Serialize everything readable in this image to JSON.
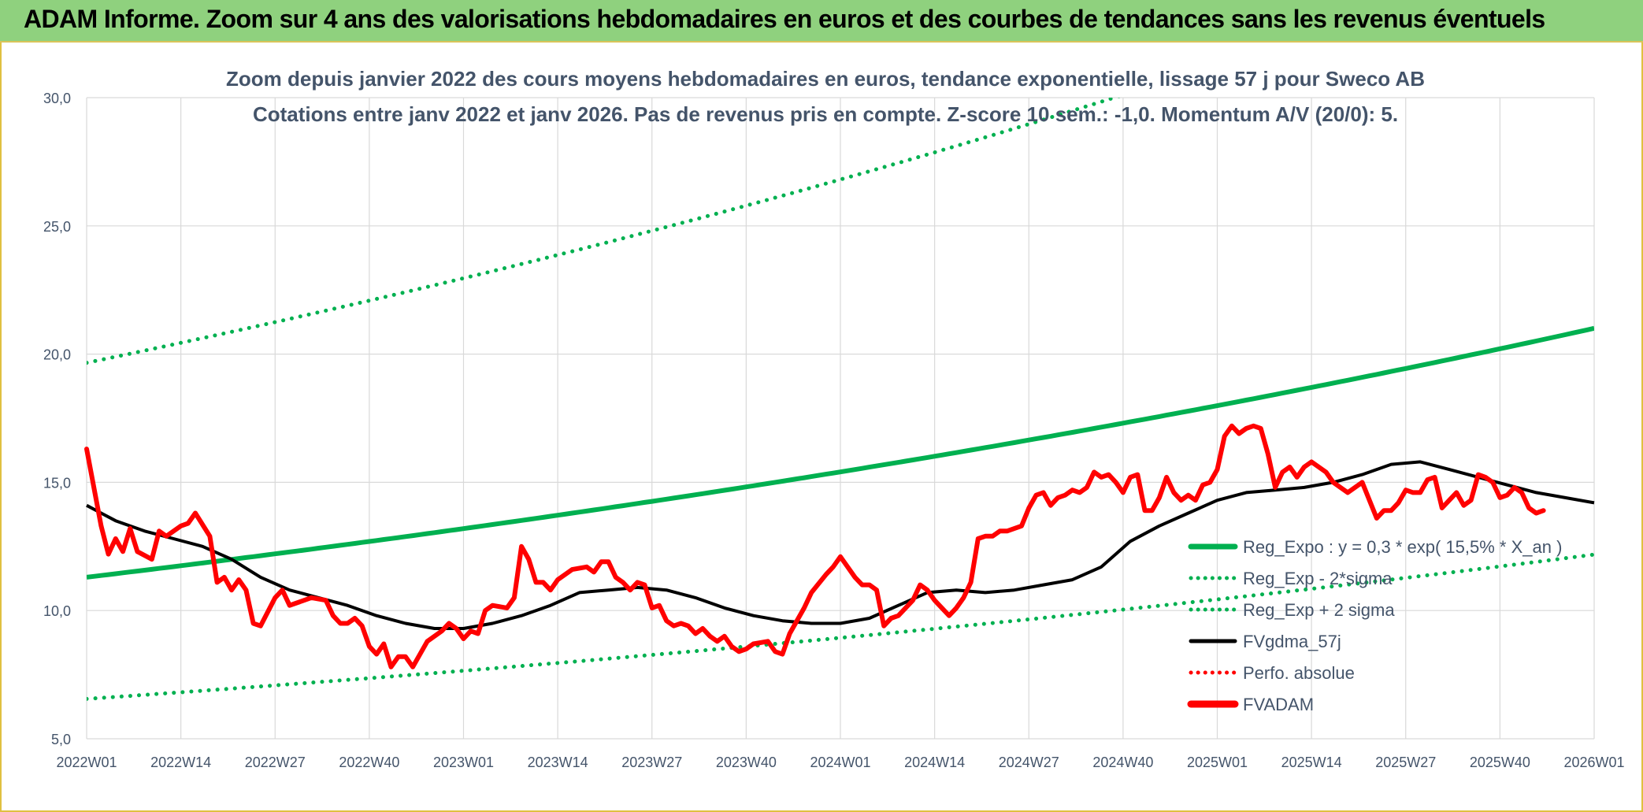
{
  "banner": {
    "title": "ADAM Informe. Zoom sur 4 ans des valorisations hebdomadaires en euros et des courbes de tendances sans les revenus éventuels"
  },
  "colors": {
    "banner_bg": "#8fd17e",
    "trend": "#00b050",
    "smooth": "#000000",
    "price": "#ff0000",
    "grid": "#d9d9d9",
    "text": "#44546a"
  },
  "chart_data": {
    "type": "line",
    "title": [
      "Zoom depuis janvier 2022 des cours moyens hebdomadaires en euros, tendance exponentielle, lissage 57 j pour Sweco AB",
      "Cotations entre janv 2022 et janv 2026. Pas de revenus pris en compte. Z-score 10 sem.: -1,0. Momentum A/V (20/0): 5."
    ],
    "x_tick_labels": [
      "2022W01",
      "2022W14",
      "2022W27",
      "2022W40",
      "2023W01",
      "2023W14",
      "2023W27",
      "2023W40",
      "2024W01",
      "2024W14",
      "2024W27",
      "2024W40",
      "2025W01",
      "2025W14",
      "2025W27",
      "2025W40",
      "2026W01"
    ],
    "y_tick_labels": [
      "5,0",
      "10,0",
      "15,0",
      "20,0",
      "25,0",
      "30,0"
    ],
    "y_ticks": [
      5,
      10,
      15,
      20,
      25,
      30
    ],
    "ylim": [
      5,
      30
    ],
    "weeks_range": [
      0,
      208
    ],
    "grid": true,
    "legend_position": "right",
    "regression": {
      "a": 11.3,
      "rate": 0.155
    },
    "series": [
      {
        "name": "Reg_Expo : y = 0,3 * exp( 15,5% *  X_an )",
        "style": "solid-thick",
        "color": "#00b050"
      },
      {
        "name": "Reg_Exp - 2*sigma",
        "style": "dotted",
        "color": "#00b050",
        "factor": 0.58
      },
      {
        "name": "Reg_Exp + 2 sigma",
        "style": "dotted",
        "color": "#00b050",
        "factor": 1.74
      },
      {
        "name": "FVgdma_57j",
        "style": "solid",
        "color": "#000000",
        "points": [
          [
            0,
            14.1
          ],
          [
            4,
            13.5
          ],
          [
            8,
            13.1
          ],
          [
            12,
            12.8
          ],
          [
            16,
            12.5
          ],
          [
            20,
            12.0
          ],
          [
            24,
            11.3
          ],
          [
            28,
            10.8
          ],
          [
            32,
            10.5
          ],
          [
            36,
            10.2
          ],
          [
            40,
            9.8
          ],
          [
            44,
            9.5
          ],
          [
            48,
            9.3
          ],
          [
            52,
            9.3
          ],
          [
            56,
            9.5
          ],
          [
            60,
            9.8
          ],
          [
            64,
            10.2
          ],
          [
            68,
            10.7
          ],
          [
            72,
            10.8
          ],
          [
            76,
            10.9
          ],
          [
            80,
            10.8
          ],
          [
            84,
            10.5
          ],
          [
            88,
            10.1
          ],
          [
            92,
            9.8
          ],
          [
            96,
            9.6
          ],
          [
            100,
            9.5
          ],
          [
            104,
            9.5
          ],
          [
            108,
            9.7
          ],
          [
            112,
            10.2
          ],
          [
            116,
            10.7
          ],
          [
            120,
            10.8
          ],
          [
            124,
            10.7
          ],
          [
            128,
            10.8
          ],
          [
            132,
            11.0
          ],
          [
            136,
            11.2
          ],
          [
            140,
            11.7
          ],
          [
            144,
            12.7
          ],
          [
            148,
            13.3
          ],
          [
            152,
            13.8
          ],
          [
            156,
            14.3
          ],
          [
            160,
            14.6
          ],
          [
            164,
            14.7
          ],
          [
            168,
            14.8
          ],
          [
            172,
            15.0
          ],
          [
            176,
            15.3
          ],
          [
            180,
            15.7
          ],
          [
            184,
            15.8
          ],
          [
            188,
            15.5
          ],
          [
            192,
            15.2
          ],
          [
            196,
            14.9
          ],
          [
            200,
            14.6
          ],
          [
            204,
            14.4
          ],
          [
            208,
            14.2
          ]
        ]
      },
      {
        "name": "Perfo. absolue",
        "style": "dotted",
        "color": "#ff0000"
      },
      {
        "name": "FVADAM",
        "style": "solid-thick",
        "color": "#ff0000",
        "points": [
          [
            0,
            16.3
          ],
          [
            2,
            13.3
          ],
          [
            3,
            12.2
          ],
          [
            4,
            12.8
          ],
          [
            5,
            12.3
          ],
          [
            6,
            13.2
          ],
          [
            7,
            12.3
          ],
          [
            9,
            12.0
          ],
          [
            10,
            13.1
          ],
          [
            11,
            12.9
          ],
          [
            13,
            13.3
          ],
          [
            14,
            13.4
          ],
          [
            15,
            13.8
          ],
          [
            17,
            12.9
          ],
          [
            18,
            11.1
          ],
          [
            19,
            11.3
          ],
          [
            20,
            10.8
          ],
          [
            21,
            11.2
          ],
          [
            22,
            10.8
          ],
          [
            23,
            9.5
          ],
          [
            24,
            9.4
          ],
          [
            26,
            10.5
          ],
          [
            27,
            10.8
          ],
          [
            28,
            10.2
          ],
          [
            30,
            10.4
          ],
          [
            31,
            10.5
          ],
          [
            33,
            10.4
          ],
          [
            34,
            9.8
          ],
          [
            35,
            9.5
          ],
          [
            36,
            9.5
          ],
          [
            37,
            9.7
          ],
          [
            38,
            9.4
          ],
          [
            39,
            8.6
          ],
          [
            40,
            8.3
          ],
          [
            41,
            8.7
          ],
          [
            42,
            7.8
          ],
          [
            43,
            8.2
          ],
          [
            44,
            8.2
          ],
          [
            45,
            7.8
          ],
          [
            47,
            8.8
          ],
          [
            49,
            9.2
          ],
          [
            50,
            9.5
          ],
          [
            51,
            9.3
          ],
          [
            52,
            8.9
          ],
          [
            53,
            9.2
          ],
          [
            54,
            9.1
          ],
          [
            55,
            10.0
          ],
          [
            56,
            10.2
          ],
          [
            58,
            10.1
          ],
          [
            59,
            10.5
          ],
          [
            60,
            12.5
          ],
          [
            61,
            12.0
          ],
          [
            62,
            11.1
          ],
          [
            63,
            11.1
          ],
          [
            64,
            10.8
          ],
          [
            65,
            11.2
          ],
          [
            67,
            11.6
          ],
          [
            69,
            11.7
          ],
          [
            70,
            11.5
          ],
          [
            71,
            11.9
          ],
          [
            72,
            11.9
          ],
          [
            73,
            11.3
          ],
          [
            74,
            11.1
          ],
          [
            75,
            10.8
          ],
          [
            76,
            11.1
          ],
          [
            77,
            11.0
          ],
          [
            78,
            10.1
          ],
          [
            79,
            10.2
          ],
          [
            80,
            9.6
          ],
          [
            81,
            9.4
          ],
          [
            82,
            9.5
          ],
          [
            83,
            9.4
          ],
          [
            84,
            9.1
          ],
          [
            85,
            9.3
          ],
          [
            86,
            9.0
          ],
          [
            87,
            8.8
          ],
          [
            88,
            9.0
          ],
          [
            89,
            8.6
          ],
          [
            90,
            8.4
          ],
          [
            91,
            8.5
          ],
          [
            92,
            8.7
          ],
          [
            94,
            8.8
          ],
          [
            95,
            8.4
          ],
          [
            96,
            8.3
          ],
          [
            97,
            9.1
          ],
          [
            99,
            10.1
          ],
          [
            100,
            10.7
          ],
          [
            102,
            11.4
          ],
          [
            103,
            11.7
          ],
          [
            104,
            12.1
          ],
          [
            105,
            11.7
          ],
          [
            106,
            11.3
          ],
          [
            107,
            11.0
          ],
          [
            108,
            11.0
          ],
          [
            109,
            10.8
          ],
          [
            110,
            9.4
          ],
          [
            111,
            9.7
          ],
          [
            112,
            9.8
          ],
          [
            114,
            10.4
          ],
          [
            115,
            11.0
          ],
          [
            116,
            10.8
          ],
          [
            117,
            10.4
          ],
          [
            118,
            10.1
          ],
          [
            119,
            9.8
          ],
          [
            120,
            10.1
          ],
          [
            121,
            10.5
          ],
          [
            122,
            11.1
          ],
          [
            123,
            12.8
          ],
          [
            124,
            12.9
          ],
          [
            125,
            12.9
          ],
          [
            126,
            13.1
          ],
          [
            127,
            13.1
          ],
          [
            129,
            13.3
          ],
          [
            130,
            14.0
          ],
          [
            131,
            14.5
          ],
          [
            132,
            14.6
          ],
          [
            133,
            14.1
          ],
          [
            134,
            14.4
          ],
          [
            135,
            14.5
          ],
          [
            136,
            14.7
          ],
          [
            137,
            14.6
          ],
          [
            138,
            14.8
          ],
          [
            139,
            15.4
          ],
          [
            140,
            15.2
          ],
          [
            141,
            15.3
          ],
          [
            142,
            15.0
          ],
          [
            143,
            14.6
          ],
          [
            144,
            15.2
          ],
          [
            145,
            15.3
          ],
          [
            146,
            13.9
          ],
          [
            147,
            13.9
          ],
          [
            148,
            14.4
          ],
          [
            149,
            15.2
          ],
          [
            150,
            14.6
          ],
          [
            151,
            14.3
          ],
          [
            152,
            14.5
          ],
          [
            153,
            14.3
          ],
          [
            154,
            14.9
          ],
          [
            155,
            15.0
          ],
          [
            156,
            15.5
          ],
          [
            157,
            16.8
          ],
          [
            158,
            17.2
          ],
          [
            159,
            16.9
          ],
          [
            160,
            17.1
          ],
          [
            161,
            17.2
          ],
          [
            162,
            17.1
          ],
          [
            163,
            16.1
          ],
          [
            164,
            14.8
          ],
          [
            165,
            15.4
          ],
          [
            166,
            15.6
          ],
          [
            167,
            15.2
          ],
          [
            168,
            15.6
          ],
          [
            169,
            15.8
          ],
          [
            170,
            15.6
          ],
          [
            171,
            15.4
          ],
          [
            172,
            15.0
          ],
          [
            173,
            14.8
          ],
          [
            174,
            14.6
          ],
          [
            175,
            14.8
          ],
          [
            176,
            15.0
          ],
          [
            177,
            14.3
          ],
          [
            178,
            13.6
          ],
          [
            179,
            13.9
          ],
          [
            180,
            13.9
          ],
          [
            181,
            14.2
          ],
          [
            182,
            14.7
          ],
          [
            183,
            14.6
          ],
          [
            184,
            14.6
          ],
          [
            185,
            15.1
          ],
          [
            186,
            15.2
          ],
          [
            187,
            14.0
          ],
          [
            188,
            14.3
          ],
          [
            189,
            14.6
          ],
          [
            190,
            14.1
          ],
          [
            191,
            14.3
          ],
          [
            192,
            15.3
          ],
          [
            193,
            15.2
          ],
          [
            194,
            15.0
          ],
          [
            195,
            14.4
          ],
          [
            196,
            14.5
          ],
          [
            197,
            14.8
          ],
          [
            198,
            14.6
          ],
          [
            199,
            14.0
          ],
          [
            200,
            13.8
          ],
          [
            201,
            13.9
          ]
        ]
      }
    ]
  }
}
